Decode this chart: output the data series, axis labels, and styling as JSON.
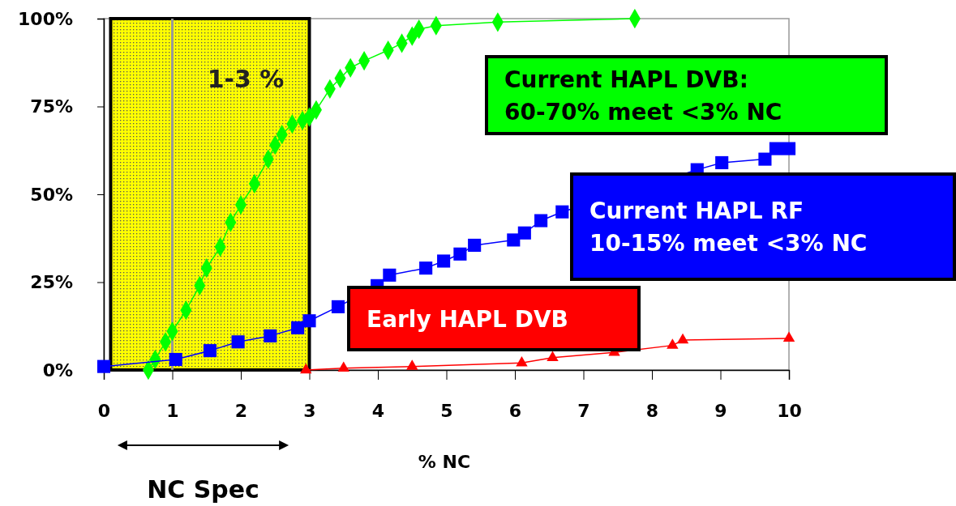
{
  "chart_data": {
    "type": "line",
    "xlabel": "% NC",
    "xlim": [
      0,
      10
    ],
    "xticks": [
      0,
      1,
      2,
      3,
      4,
      5,
      6,
      7,
      8,
      9,
      10
    ],
    "ylim": [
      0,
      100
    ],
    "yticks": [
      {
        "value": 0,
        "label": "0%"
      },
      {
        "value": 25,
        "label": "25%"
      },
      {
        "value": 50,
        "label": "50%"
      },
      {
        "value": 75,
        "label": "75%"
      },
      {
        "value": 100,
        "label": "100%"
      }
    ],
    "grid": false,
    "line_style": "solid",
    "bands": [
      {
        "axis": "x",
        "from": 0.1,
        "to": 3,
        "label": "1-3 %",
        "color": "#ffff00"
      }
    ],
    "ref_lines": [
      {
        "axis": "x",
        "value": 1,
        "color": "#999999"
      }
    ],
    "annotations": [
      "NC Spec"
    ],
    "series": [
      {
        "name": "Current HAPL DVB:\n60-70% meet <3% NC",
        "color": "#00ff00",
        "marker": "diamond",
        "x": [
          0.65,
          0.75,
          0.9,
          1.0,
          1.2,
          1.4,
          1.5,
          1.7,
          1.85,
          2.0,
          2.2,
          2.4,
          2.5,
          2.6,
          2.75,
          2.9,
          3.0,
          3.1,
          3.3,
          3.45,
          3.6,
          3.8,
          4.15,
          4.35,
          4.5,
          4.6,
          4.85,
          5.75,
          7.75
        ],
        "values": [
          0,
          3,
          8,
          11,
          17,
          24,
          29,
          35,
          42,
          47,
          53,
          60,
          64,
          67,
          70,
          71,
          72,
          74,
          80,
          83,
          86,
          88,
          91,
          93,
          95,
          97,
          98,
          99,
          100
        ]
      },
      {
        "name": "Current HAPL RF\n10-15% meet <3% NC",
        "color": "#0000ff",
        "marker": "square",
        "x": [
          0,
          1.05,
          1.55,
          1.96,
          2.43,
          2.83,
          3.0,
          3.42,
          3.99,
          4.17,
          4.7,
          4.96,
          5.2,
          5.41,
          5.98,
          6.14,
          6.38,
          6.69,
          8.66,
          9.02,
          9.65,
          9.81,
          10
        ],
        "values": [
          1,
          3,
          5.5,
          8,
          9.7,
          12,
          14,
          18,
          24,
          27,
          29,
          31,
          33,
          35.5,
          37,
          39,
          42.5,
          45,
          57,
          59,
          60,
          63,
          63
        ]
      },
      {
        "name": "Early HAPL DVB",
        "color": "#ff0000",
        "marker": "triangle",
        "x": [
          2.95,
          3.5,
          4.5,
          6.1,
          6.55,
          7.45,
          8.3,
          8.45,
          10
        ],
        "values": [
          0,
          0.5,
          1,
          2,
          3.5,
          5,
          7,
          8.5,
          9
        ]
      }
    ]
  }
}
